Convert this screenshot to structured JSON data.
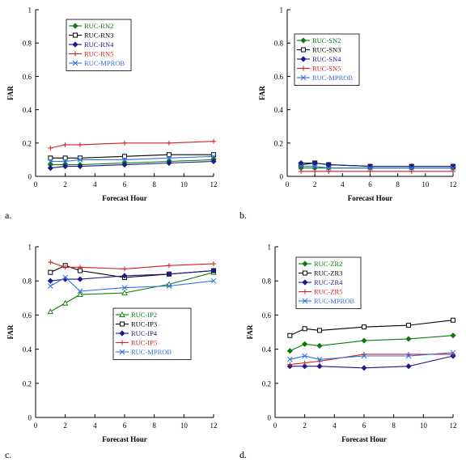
{
  "colors": {
    "axis": "#000000",
    "green": "#0a7a0a",
    "black": "#000000",
    "navy": "#1a1a8c",
    "red": "#d02020",
    "blue": "#3070e0"
  },
  "chart_data": [
    {
      "type": "line",
      "panel_label": "a.",
      "xlabel": "Forecast Hour",
      "ylabel": "FAR",
      "xlim": [
        0,
        12
      ],
      "ylim": [
        0,
        1
      ],
      "xticks": [
        "0",
        "2",
        "4",
        "6",
        "8",
        "10",
        "12"
      ],
      "yticks": [
        "0",
        "0.2",
        "0.4",
        "0.6",
        "0.8",
        "1"
      ],
      "x": [
        1,
        2,
        3,
        6,
        9,
        12
      ],
      "legend_position": "top-left",
      "series": [
        {
          "name": "RUC-RN2",
          "color": "green",
          "marker": "diamond",
          "values": [
            0.07,
            0.07,
            0.07,
            0.08,
            0.09,
            0.1
          ]
        },
        {
          "name": "RUC-RN3",
          "color": "black",
          "marker": "square",
          "values": [
            0.11,
            0.11,
            0.11,
            0.12,
            0.13,
            0.13
          ]
        },
        {
          "name": "RUC-RN4",
          "color": "navy",
          "marker": "diamond",
          "values": [
            0.05,
            0.06,
            0.06,
            0.07,
            0.08,
            0.09
          ]
        },
        {
          "name": "RUC-RN5",
          "color": "red",
          "marker": "plus",
          "values": [
            0.17,
            0.19,
            0.19,
            0.2,
            0.2,
            0.21
          ]
        },
        {
          "name": "RUC-MPROB",
          "color": "blue",
          "marker": "cross",
          "values": [
            0.09,
            0.09,
            0.1,
            0.1,
            0.11,
            0.12
          ]
        }
      ]
    },
    {
      "type": "line",
      "panel_label": "b.",
      "xlabel": "Forecast Hour",
      "ylabel": "FAR",
      "xlim": [
        0,
        12
      ],
      "ylim": [
        0,
        1
      ],
      "xticks": [
        "0",
        "2",
        "4",
        "6",
        "8",
        "10",
        "12"
      ],
      "yticks": [
        "0",
        "0.2",
        "0.4",
        "0.6",
        "0.8",
        "1"
      ],
      "x": [
        1,
        2,
        3,
        6,
        9,
        12
      ],
      "legend_position": "top-left",
      "series": [
        {
          "name": "RUC-SN2",
          "color": "green",
          "marker": "diamond",
          "values": [
            0.05,
            0.05,
            0.05,
            0.05,
            0.05,
            0.05
          ]
        },
        {
          "name": "RUC-SN3",
          "color": "black",
          "marker": "square",
          "values": [
            0.07,
            0.08,
            0.07,
            0.06,
            0.06,
            0.06
          ]
        },
        {
          "name": "RUC-SN4",
          "color": "navy",
          "marker": "diamond",
          "values": [
            0.08,
            0.08,
            0.07,
            0.06,
            0.06,
            0.06
          ]
        },
        {
          "name": "RUC-SN5",
          "color": "red",
          "marker": "plus",
          "values": [
            0.03,
            0.03,
            0.03,
            0.03,
            0.03,
            0.03
          ]
        },
        {
          "name": "RUC-MPROB",
          "color": "blue",
          "marker": "cross",
          "values": [
            0.06,
            0.06,
            0.05,
            0.05,
            0.05,
            0.05
          ]
        }
      ]
    },
    {
      "type": "line",
      "panel_label": "c.",
      "xlabel": "Forecast Hour",
      "ylabel": "FAR",
      "xlim": [
        0,
        12
      ],
      "ylim": [
        0,
        1
      ],
      "xticks": [
        "0",
        "2",
        "4",
        "6",
        "8",
        "10",
        "12"
      ],
      "yticks": [
        "0",
        "0.2",
        "0.4",
        "0.6",
        "0.8",
        "1"
      ],
      "x": [
        1,
        2,
        3,
        6,
        9,
        12
      ],
      "legend_position": "center-right",
      "series": [
        {
          "name": "RUC-IP2",
          "color": "green",
          "marker": "triangle",
          "values": [
            0.62,
            0.67,
            0.72,
            0.73,
            0.78,
            0.85
          ]
        },
        {
          "name": "RUC-IP3",
          "color": "black",
          "marker": "square",
          "values": [
            0.85,
            0.89,
            0.86,
            0.82,
            0.84,
            0.86
          ]
        },
        {
          "name": "RUC-IP4",
          "color": "navy",
          "marker": "diamond",
          "values": [
            0.8,
            0.81,
            0.81,
            0.83,
            0.84,
            0.86
          ]
        },
        {
          "name": "RUC-IP5",
          "color": "red",
          "marker": "plus",
          "values": [
            0.91,
            0.88,
            0.88,
            0.87,
            0.89,
            0.9
          ]
        },
        {
          "name": "RUC-MPROB",
          "color": "blue",
          "marker": "cross",
          "values": [
            0.77,
            0.82,
            0.74,
            0.76,
            0.77,
            0.8
          ]
        }
      ]
    },
    {
      "type": "line",
      "panel_label": "d.",
      "xlabel": "Forecast Hour",
      "ylabel": "FAR",
      "xlim": [
        0,
        12
      ],
      "ylim": [
        0,
        1
      ],
      "xticks": [
        "0",
        "2",
        "4",
        "6",
        "8",
        "10",
        "12"
      ],
      "yticks": [
        "0",
        "0.2",
        "0.4",
        "0.6",
        "0.8",
        "1"
      ],
      "x": [
        1,
        2,
        3,
        6,
        9,
        12
      ],
      "legend_position": "top-left",
      "series": [
        {
          "name": "RUC-ZR2",
          "color": "green",
          "marker": "diamond",
          "values": [
            0.39,
            0.43,
            0.42,
            0.45,
            0.46,
            0.48
          ]
        },
        {
          "name": "RUC-ZR3",
          "color": "black",
          "marker": "square",
          "values": [
            0.48,
            0.52,
            0.51,
            0.53,
            0.54,
            0.57
          ]
        },
        {
          "name": "RUC-ZR4",
          "color": "navy",
          "marker": "diamond",
          "values": [
            0.3,
            0.3,
            0.3,
            0.29,
            0.3,
            0.36
          ]
        },
        {
          "name": "RUC-ZR5",
          "color": "red",
          "marker": "plus",
          "values": [
            0.31,
            0.32,
            0.33,
            0.37,
            0.37,
            0.37
          ]
        },
        {
          "name": "RUC-MPROB",
          "color": "blue",
          "marker": "cross",
          "values": [
            0.34,
            0.36,
            0.34,
            0.36,
            0.36,
            0.38
          ]
        }
      ]
    }
  ]
}
